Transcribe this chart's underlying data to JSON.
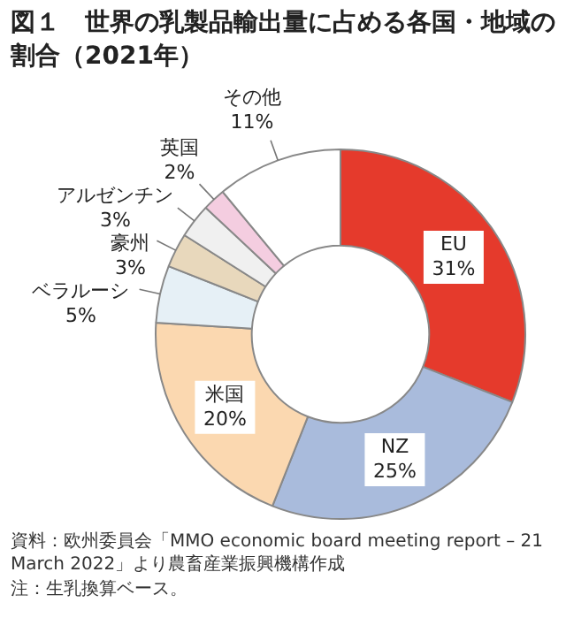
{
  "chart_data": {
    "type": "donut",
    "title": "図１　世界の乳製品輸出量に占める各国・地域の割合（2021年）",
    "categories": [
      "EU",
      "NZ",
      "米国",
      "ベラルーシ",
      "豪州",
      "アルゼンチン",
      "英国",
      "その他"
    ],
    "values": [
      31,
      25,
      20,
      5,
      3,
      3,
      2,
      11
    ],
    "value_labels": [
      "31%",
      "25%",
      "20%",
      "5%",
      "3%",
      "3%",
      "2%",
      "11%"
    ],
    "colors": [
      "#e53a2c",
      "#a9bbdc",
      "#fbd8b0",
      "#e6f0f6",
      "#e8d8bc",
      "#f0f0f0",
      "#f4cde0",
      "#ffffff"
    ],
    "legend": false,
    "annotations": [
      "資料：欧州委員会「MMO economic board meeting report – 21 March 2022」より農畜産業振興機構作成",
      "注：生乳換算ベース。"
    ]
  }
}
